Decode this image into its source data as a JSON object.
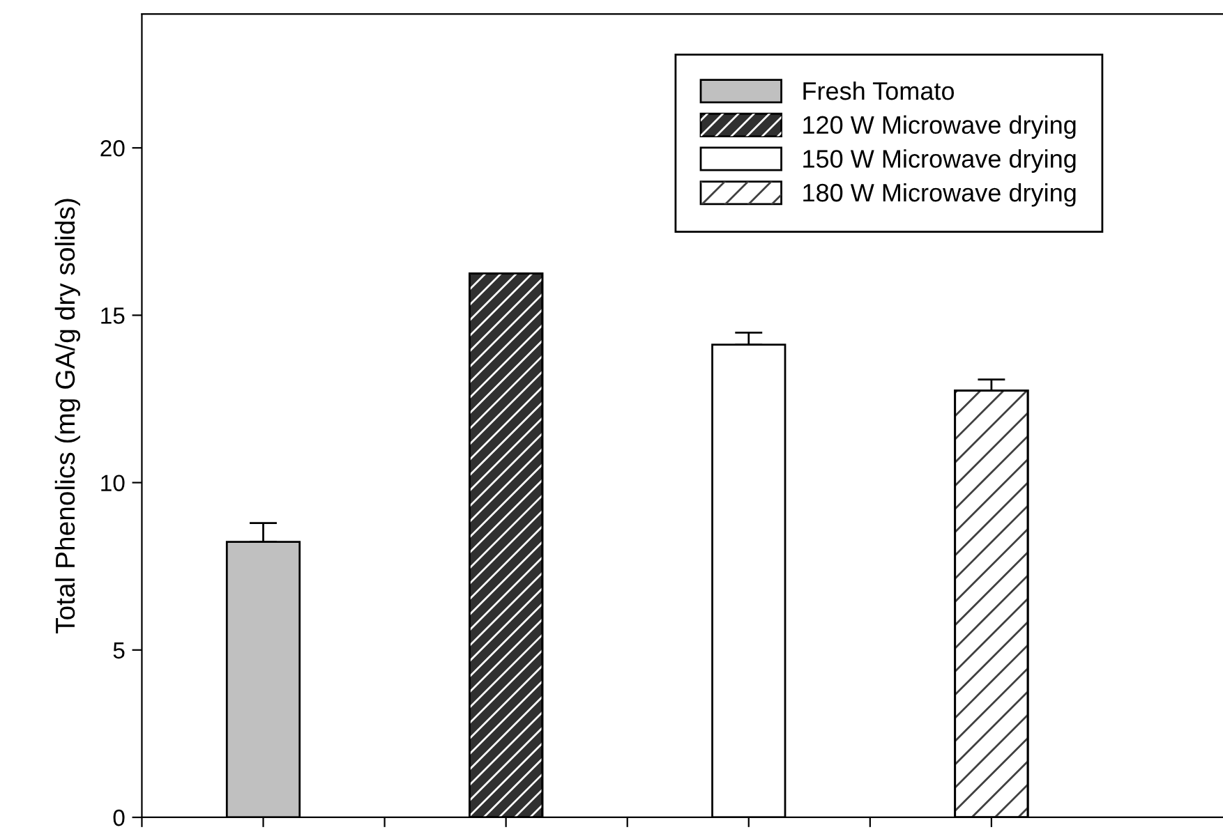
{
  "chart_data": {
    "type": "bar",
    "ylabel": "Total Phenolics (mg GA/g dry solids)",
    "categories": [
      null,
      null,
      null,
      null
    ],
    "series": [
      {
        "name": "Fresh Tomato",
        "color": "#c0c0c0",
        "values": [
          8.23,
          null,
          null,
          null
        ],
        "errors": [
          [
            8.23,
            8.79
          ],
          null,
          null,
          null
        ]
      },
      {
        "name": "120 W Microwave drying",
        "color": "#303030",
        "values": [
          null,
          16.25,
          null,
          null
        ],
        "errors": [
          null,
          null,
          null,
          null
        ]
      },
      {
        "name": "150 W Microwave drying",
        "color": "#ffffff",
        "values": [
          null,
          null,
          14.12,
          null
        ],
        "errors": [
          null,
          null,
          [
            14.12,
            14.48
          ],
          null
        ]
      },
      {
        "name": "180 W Microwave drying",
        "color": "#ffffff",
        "values": [
          null,
          null,
          null,
          12.75
        ],
        "errors": [
          null,
          null,
          null,
          [
            12.75,
            13.08
          ]
        ]
      }
    ],
    "ylim": [
      0,
      24
    ],
    "yticks": [
      0,
      5,
      10,
      15,
      20
    ],
    "grid": false,
    "legend": "top right"
  }
}
